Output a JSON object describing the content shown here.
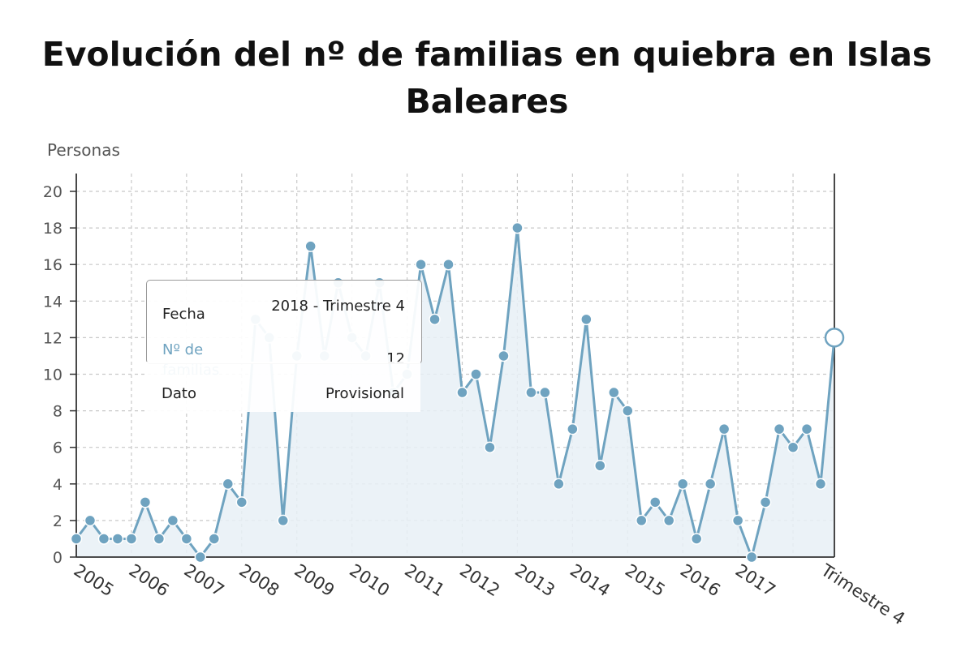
{
  "title": "Evolución del nº de familias en quiebra en Islas Baleares",
  "colors": {
    "line": "#6fa3c0",
    "point": "#6fa3c0",
    "area": "#e8f0f6",
    "grid": "#c8c8c8",
    "axis": "#333333"
  },
  "tooltip": {
    "fecha_label": "Fecha",
    "fecha_value": "2018 - Trimestre 4",
    "series_label": "Nº de familias",
    "series_value": "12",
    "dato_label": "Dato",
    "dato_value": "Provisional"
  },
  "chart_data": {
    "type": "area",
    "title": "Evolución del nº de familias en quiebra en Islas Baleares",
    "xlabel": "",
    "ylabel": "Personas",
    "ylim": [
      0,
      20
    ],
    "y_ticks": [
      0,
      2,
      4,
      6,
      8,
      10,
      12,
      14,
      16,
      18,
      20
    ],
    "x_tick_labels": [
      "2005",
      "2006",
      "2007",
      "2008",
      "2009",
      "2010",
      "2011",
      "2012",
      "2013",
      "2014",
      "2015",
      "2016",
      "2017",
      "Trimestre 4"
    ],
    "grid": true,
    "legend": "none",
    "series": [
      {
        "name": "Nº de familias",
        "values": [
          1,
          2,
          1,
          1,
          1,
          3,
          1,
          2,
          1,
          0,
          1,
          4,
          3,
          13,
          12,
          2,
          11,
          17,
          11,
          15,
          12,
          11,
          15,
          9,
          10,
          16,
          13,
          16,
          9,
          10,
          6,
          11,
          18,
          9,
          9,
          4,
          7,
          13,
          5,
          9,
          8,
          2,
          3,
          2,
          4,
          1,
          4,
          7,
          2,
          0,
          3,
          7,
          6,
          7,
          4,
          12
        ]
      }
    ]
  }
}
